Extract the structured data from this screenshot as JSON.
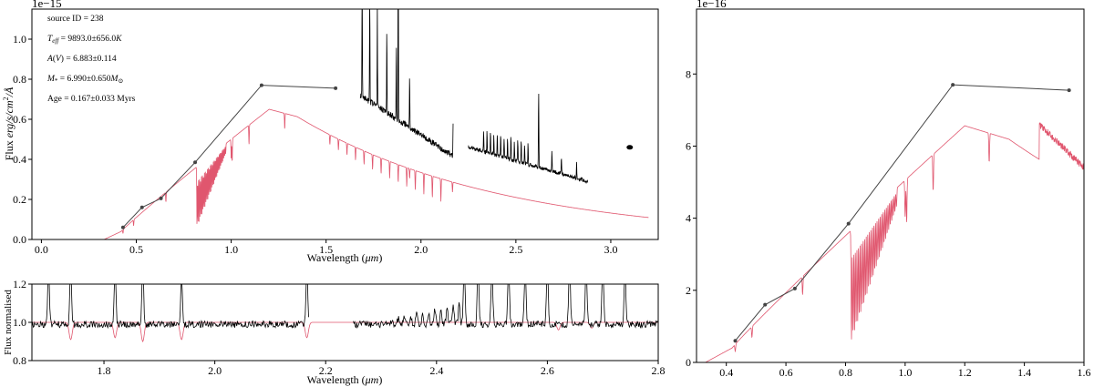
{
  "colors": {
    "model": "#e0566e",
    "data": "#000000",
    "photometry": "#444444",
    "axis": "#000000"
  },
  "chart_data": [
    {
      "id": "main",
      "type": "line",
      "xlabel": "Wavelength (μm)",
      "ylabel": "Flux erg/s/cm²/Å",
      "offset_label": "1e−15",
      "xlim": [
        -0.05,
        3.25
      ],
      "ylim": [
        0.0,
        1.15
      ],
      "xticks": [
        0.0,
        0.5,
        1.0,
        1.5,
        2.0,
        2.5,
        3.0
      ],
      "xtick_labels": [
        "0.0",
        "0.5",
        "1.0",
        "1.5",
        "2.0",
        "2.5",
        "3.0"
      ],
      "yticks": [
        0.0,
        0.2,
        0.4,
        0.6,
        0.8,
        1.0
      ],
      "ytick_labels": [
        "0.0",
        "0.2",
        "0.4",
        "0.6",
        "0.8",
        "1.0"
      ],
      "annotations": [
        "source ID = 238",
        "Teff = 9893.0±656.0K",
        "A(V) = 6.883±0.114",
        "M* = 6.990±0.650M⊙",
        "Age = 0.167±0.033 Myrs"
      ],
      "photometry": {
        "x": [
          0.43,
          0.53,
          0.63,
          0.81,
          1.16,
          1.55
        ],
        "y": [
          0.06,
          0.16,
          0.205,
          0.385,
          0.77,
          0.755
        ]
      },
      "isolated_point": {
        "x": 3.1,
        "y": 0.46
      }
    },
    {
      "id": "normalised",
      "type": "line",
      "xlabel": "Wavelength (μm)",
      "ylabel": "Flux normalised",
      "xlim": [
        1.67,
        2.8
      ],
      "ylim": [
        0.8,
        1.2
      ],
      "xticks": [
        1.8,
        2.0,
        2.2,
        2.4,
        2.6,
        2.8
      ],
      "xtick_labels": [
        "1.8",
        "2.0",
        "2.2",
        "2.4",
        "2.6",
        "2.8"
      ],
      "yticks": [
        0.8,
        1.0,
        1.2
      ],
      "ytick_labels": [
        "0.8",
        "1.0",
        "1.2"
      ]
    },
    {
      "id": "zoom",
      "type": "line",
      "offset_label": "1e−16",
      "xlim": [
        0.3,
        1.6
      ],
      "ylim": [
        0.0,
        9.8
      ],
      "xticks": [
        0.4,
        0.6,
        0.8,
        1.0,
        1.2,
        1.4,
        1.6
      ],
      "xtick_labels": [
        "0.4",
        "0.6",
        "0.8",
        "1.0",
        "1.2",
        "1.4",
        "1.6"
      ],
      "yticks": [
        0,
        2,
        4,
        6,
        8
      ],
      "ytick_labels": [
        "0",
        "2",
        "4",
        "6",
        "8"
      ],
      "photometry": {
        "x": [
          0.43,
          0.53,
          0.63,
          0.81,
          1.16,
          1.55
        ],
        "y": [
          0.6,
          1.6,
          2.05,
          3.85,
          7.7,
          7.55
        ]
      }
    }
  ]
}
